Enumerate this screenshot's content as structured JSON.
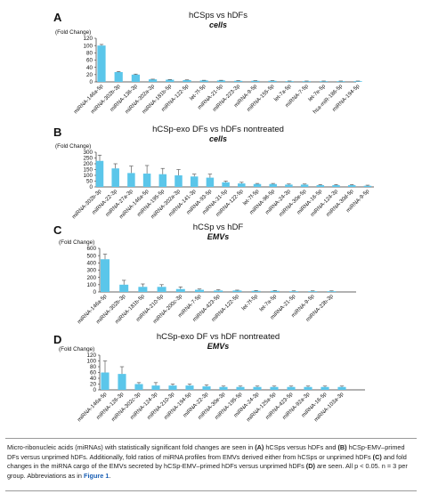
{
  "chart_data": [
    {
      "panel": "A",
      "type": "bar",
      "title": "hCSps vs hDFs",
      "subtitle": "cells",
      "ylabel": "(Fold Change)",
      "ylim": [
        0,
        120
      ],
      "yticks": [
        0,
        20,
        40,
        60,
        80,
        100,
        120
      ],
      "bar_color": "#5bc6ea",
      "categories": [
        "miRNA-146a-5p",
        "miRNA-302b-3p",
        "miRNA-136-3p",
        "miRNA-302a-3p",
        "miRNA-181b-5p",
        "miRNA-122-5p",
        "let-7f-5p",
        "miRNA-21-5p",
        "miRNA-223-3p",
        "miRNA-9-5p",
        "miRNA-155-5p",
        "let-7a-5p",
        "miRNA-7-5p",
        "let-7e-5p",
        "hsa-miR-186-5p",
        "miRNA-194-5p"
      ],
      "values": [
        100,
        27,
        20,
        7,
        6,
        5,
        4,
        4,
        3,
        3,
        3,
        2,
        2,
        2,
        2,
        2
      ],
      "errors": [
        3,
        1.5,
        1.5,
        0.5,
        0.5,
        0.5,
        0.5,
        0.5,
        0.5,
        0.5,
        0.5,
        0.5,
        0.5,
        0.5,
        0.5,
        0.5
      ]
    },
    {
      "panel": "B",
      "type": "bar",
      "title": "hCSp-exo DFs vs hDFs nontreated",
      "subtitle": "cells",
      "ylabel": "(Fold Change)",
      "ylim": [
        0,
        300
      ],
      "yticks": [
        0,
        50,
        100,
        150,
        200,
        250,
        300
      ],
      "bar_color": "#5bc6ea",
      "categories": [
        "miRNA-302b-3p",
        "miRNA-22-3p",
        "miRNA-27a-3p",
        "miRNA-146a-5p",
        "miRNA-195-5p",
        "miRNA-302a-3p",
        "miRNA-141-3p",
        "miRNA-93-5p",
        "miRNA-31-5p",
        "miRNA-122-5p",
        "let-7f-5p",
        "miRNA-96-5p",
        "miRNA-24-3p",
        "miRNA-30e-5p",
        "miRNA-16-5p",
        "miRNA-124-3p",
        "miRNA-30d-5p",
        "miRNA-9-5p"
      ],
      "values": [
        225,
        160,
        120,
        115,
        110,
        100,
        90,
        80,
        40,
        30,
        25,
        25,
        20,
        20,
        15,
        15,
        15,
        10
      ],
      "errors": [
        50,
        40,
        60,
        70,
        50,
        50,
        20,
        30,
        10,
        10,
        5,
        5,
        5,
        5,
        5,
        5,
        5,
        5
      ]
    },
    {
      "panel": "C",
      "type": "bar",
      "title": "hCSp vs hDF",
      "subtitle": "EMVs",
      "ylabel": "(Fold Change)",
      "ylim": [
        0,
        600
      ],
      "yticks": [
        0,
        100,
        200,
        300,
        400,
        500,
        600
      ],
      "bar_color": "#5bc6ea",
      "categories": [
        "miRNA-146a-5p",
        "miRNA-302b-3p",
        "miRNA-181b-5p",
        "miRNA-210-5p",
        "miRNA-200c-3p",
        "miRNA-7-5p",
        "miRNA-423-5p",
        "miRNA-122-5p",
        "let-7f-5p",
        "let-7a-5p",
        "miRNA-21-5p",
        "miRNA-9-5p",
        "miRNA-23b-3p"
      ],
      "values": [
        450,
        100,
        70,
        70,
        40,
        30,
        20,
        20,
        15,
        15,
        10,
        10,
        10
      ],
      "errors": [
        70,
        60,
        40,
        30,
        30,
        10,
        10,
        5,
        5,
        5,
        5,
        5,
        5
      ]
    },
    {
      "panel": "D",
      "type": "bar",
      "title": "hCSp-exo DF vs hDF nontreated",
      "subtitle": "EMVs",
      "ylabel": "(Fold Change)",
      "ylim": [
        0,
        120
      ],
      "yticks": [
        0,
        20,
        40,
        60,
        80,
        100,
        120
      ],
      "bar_color": "#5bc6ea",
      "categories": [
        "miRNA-146a-5p",
        "miRNA-126-3p",
        "miRNA-302c-3p",
        "miRNA-124-3p",
        "miRNA-210-3p",
        "miRNA-194-5p",
        "miRNA-22-3p",
        "miRNA-30e-3p",
        "miRNA-195-5p",
        "miRNA-24-3p",
        "miRNA-125a-5p",
        "miRNA-423-5p",
        "miRNA-92a-3p",
        "miRNA-16-5p",
        "miRNA-103a-3p"
      ],
      "values": [
        60,
        55,
        20,
        15,
        15,
        15,
        12,
        10,
        10,
        10,
        10,
        10,
        10,
        10,
        10
      ],
      "errors": [
        40,
        25,
        5,
        10,
        5,
        5,
        5,
        3,
        3,
        3,
        3,
        3,
        3,
        3,
        3
      ]
    }
  ],
  "caption": {
    "parts": [
      {
        "t": "Micro-ribonucleic acids (miRNAs) with statistically significant fold changes are seen in ",
        "s": ""
      },
      {
        "t": "(A)",
        "s": "hl"
      },
      {
        "t": " hCSps versus hDFs and ",
        "s": ""
      },
      {
        "t": "(B)",
        "s": "hl"
      },
      {
        "t": " hCSp-EMV–primed DFs versus unprimed hDFs. Additionally, fold ratios of miRNA profiles from EMVs derived either from hCSps or unprimed hDFs ",
        "s": ""
      },
      {
        "t": "(C)",
        "s": "hl"
      },
      {
        "t": " and fold changes in the miRNA cargo of the EMVs secreted by hCSp-EMV–primed hDFs versus unprimed hDFs ",
        "s": ""
      },
      {
        "t": "(D)",
        "s": "hl"
      },
      {
        "t": " are seen. All p < 0.05. n = 3 per group. Abbreviations as in ",
        "s": ""
      },
      {
        "t": "Figure 1",
        "s": "lnk"
      },
      {
        "t": ".",
        "s": ""
      }
    ]
  }
}
